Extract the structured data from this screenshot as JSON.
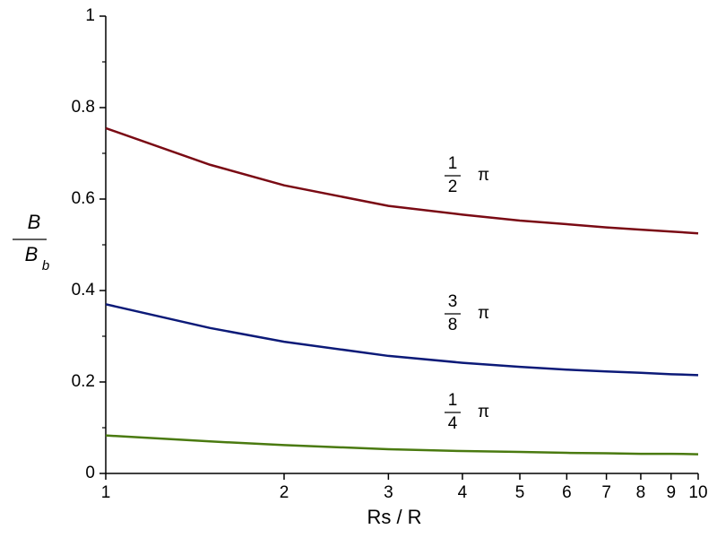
{
  "chart_data": {
    "type": "line",
    "x_label": "Rs / R",
    "y_label": {
      "numerator": "B",
      "denominator": "B",
      "denominator_subscript": "b"
    },
    "xscale": "log",
    "xlim": [
      1,
      10
    ],
    "xticks": [
      1,
      2,
      3,
      4,
      5,
      6,
      7,
      8,
      9,
      10
    ],
    "ylim": [
      0,
      1
    ],
    "yticks": [
      0,
      0.2,
      0.4,
      0.6,
      0.8,
      1
    ],
    "yminor_ticks": [
      0.1,
      0.3,
      0.5,
      0.7,
      0.9
    ],
    "grid": false,
    "x": [
      1,
      1.5,
      2,
      3,
      4,
      5,
      6,
      7,
      8,
      9,
      10
    ],
    "series": [
      {
        "color": "#7a0a14",
        "values": [
          0.755,
          0.675,
          0.63,
          0.585,
          0.566,
          0.553,
          0.545,
          0.538,
          0.533,
          0.529,
          0.525
        ]
      },
      {
        "color": "#0c1a78",
        "values": [
          0.37,
          0.318,
          0.288,
          0.257,
          0.242,
          0.233,
          0.227,
          0.223,
          0.22,
          0.217,
          0.215
        ]
      },
      {
        "color": "#4a7a10",
        "values": [
          0.083,
          0.07,
          0.062,
          0.053,
          0.049,
          0.047,
          0.045,
          0.044,
          0.043,
          0.043,
          0.042
        ]
      }
    ],
    "annotations": [
      {
        "numerator": "1",
        "denominator": "2",
        "symbol": "π"
      },
      {
        "numerator": "3",
        "denominator": "8",
        "symbol": "π"
      },
      {
        "numerator": "1",
        "denominator": "4",
        "symbol": "π"
      }
    ]
  }
}
